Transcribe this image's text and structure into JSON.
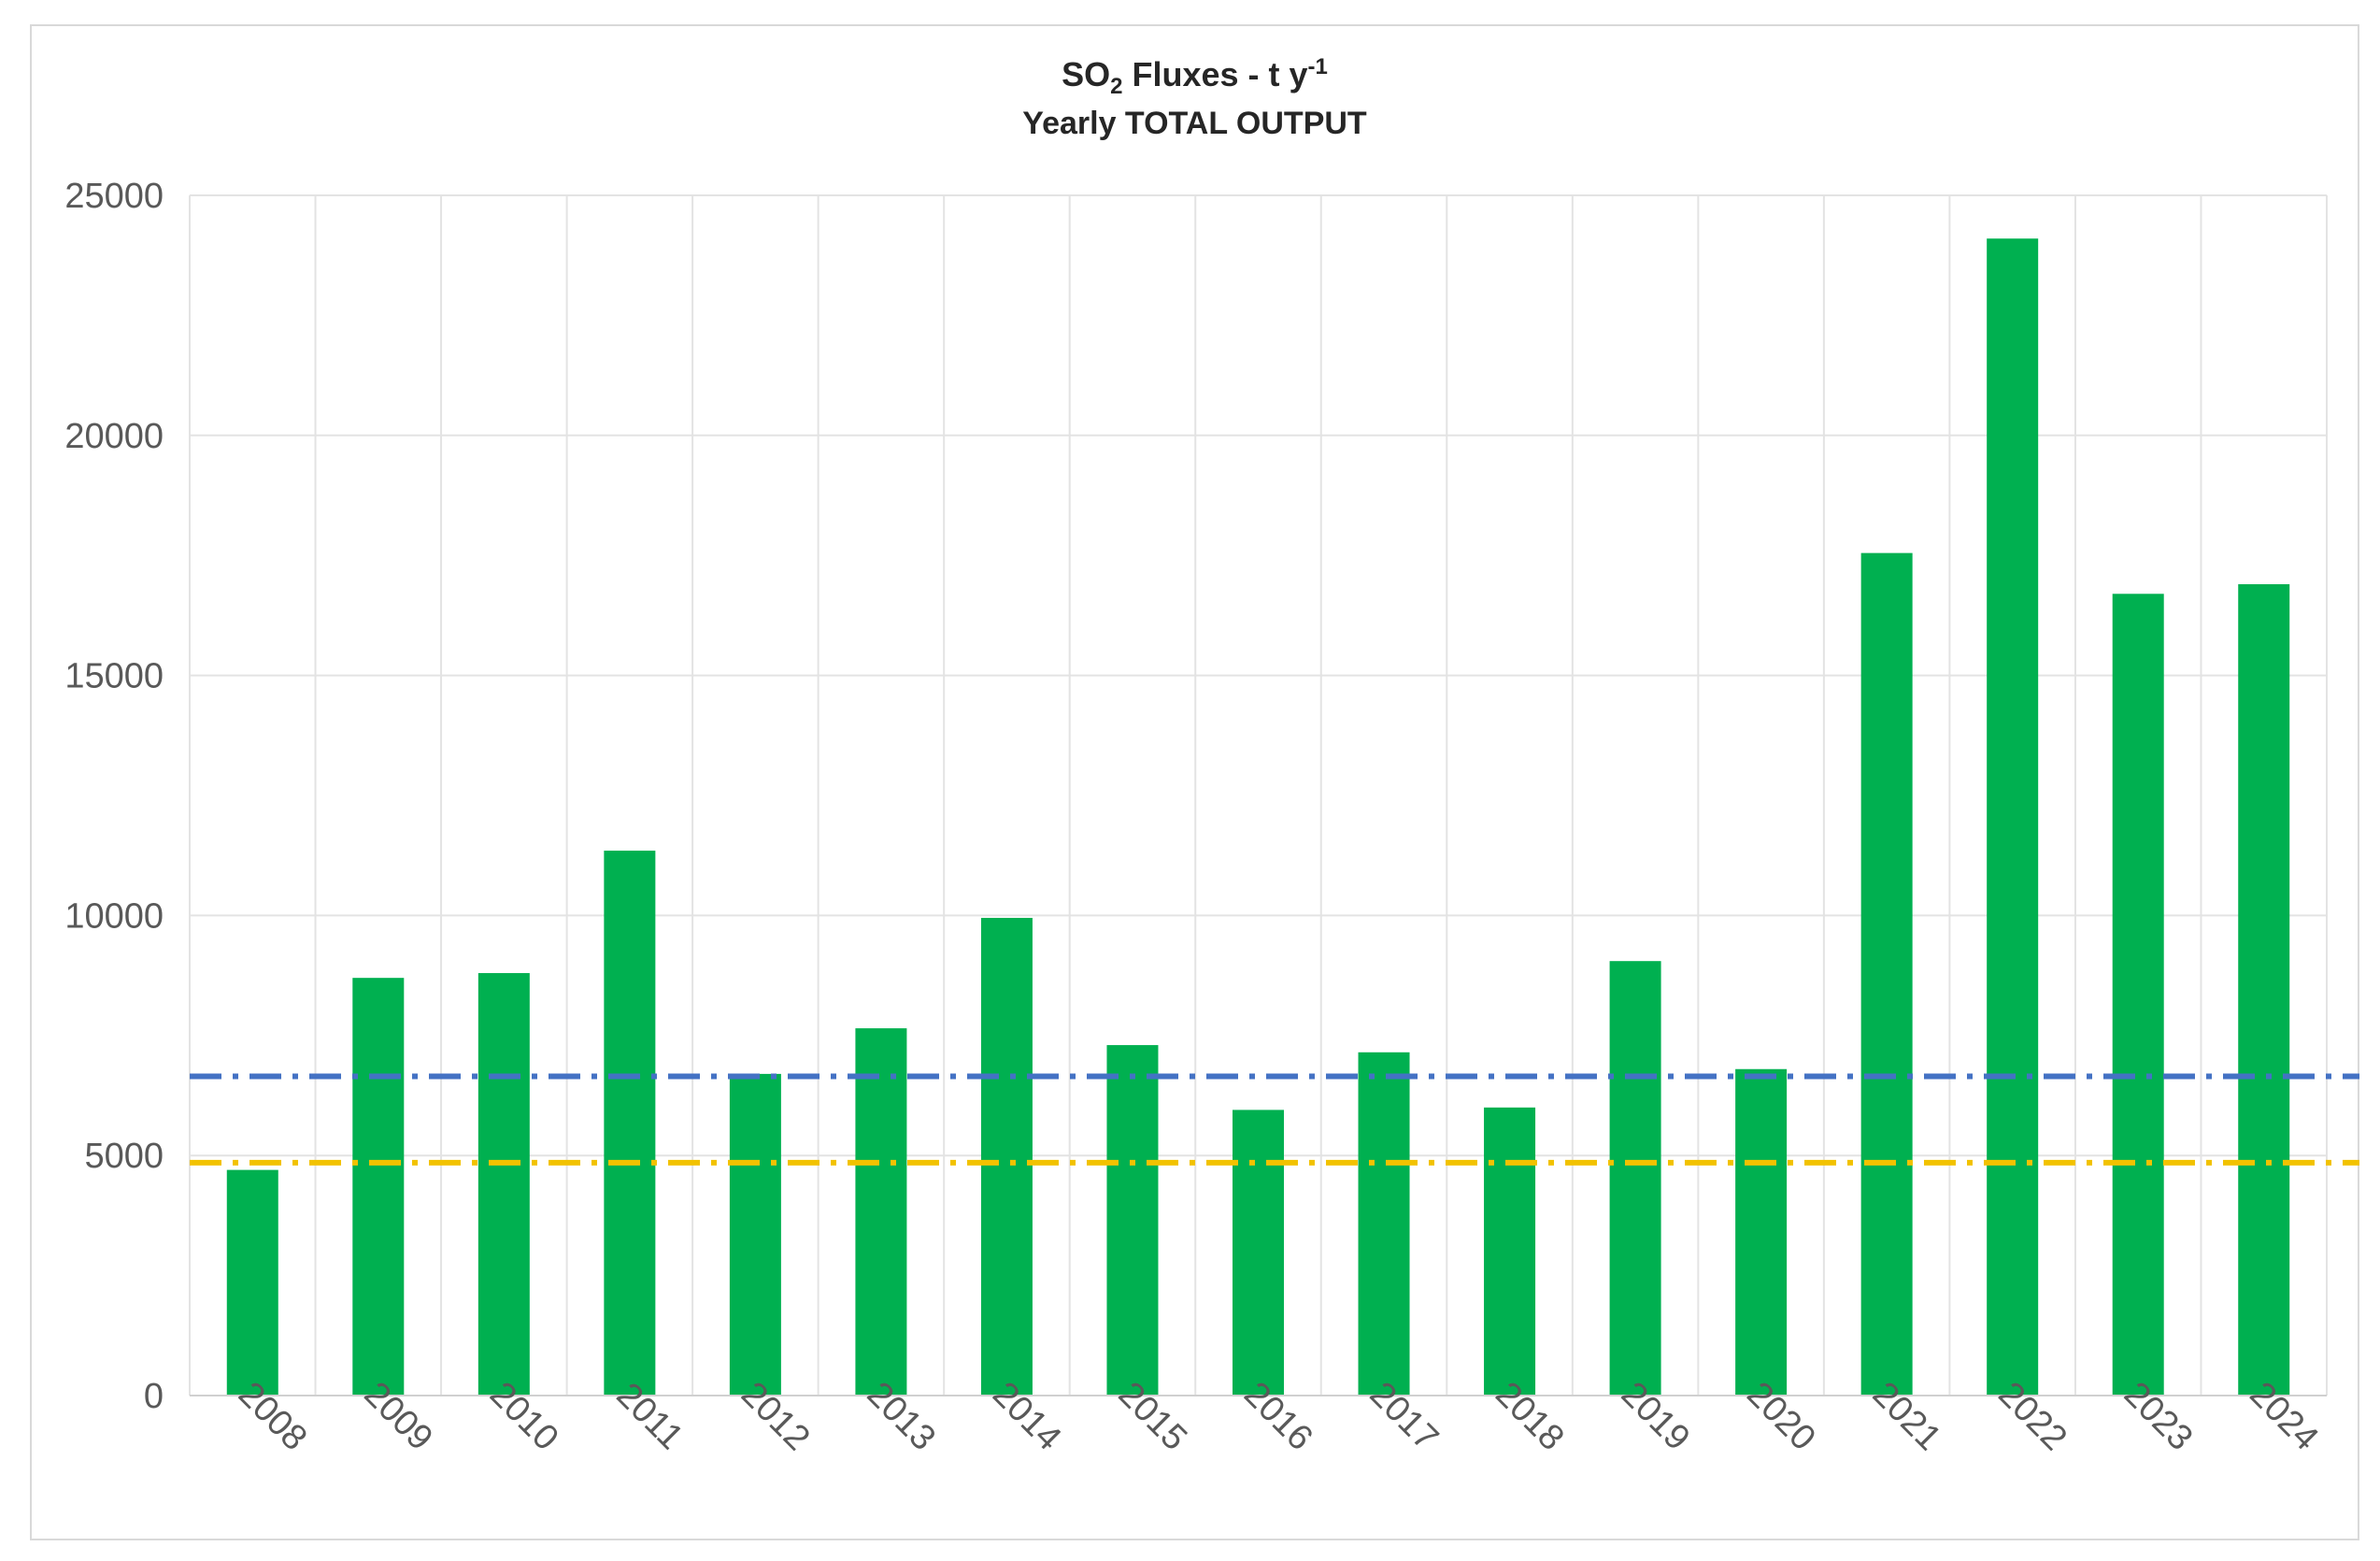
{
  "chart_data": {
    "type": "bar",
    "title": {
      "prefix": "SO",
      "subscript": "2",
      "middle": " Fluxes - t y",
      "superscript": "-1"
    },
    "subtitle": "Yearly TOTAL OUTPUT",
    "xlabel": "",
    "ylabel": "",
    "categories": [
      "2008",
      "2009",
      "2010",
      "2011",
      "2012",
      "2013",
      "2014",
      "2015",
      "2016",
      "2017",
      "2018",
      "2019",
      "2020",
      "2021",
      "2022",
      "2023",
      "2024"
    ],
    "values": [
      4700,
      8700,
      8800,
      11350,
      6700,
      7650,
      9950,
      7300,
      5950,
      7150,
      6000,
      9050,
      6800,
      17550,
      24100,
      16700,
      16900
    ],
    "ylim": [
      0,
      25000
    ],
    "yticks": [
      "0",
      "5000",
      "10000",
      "15000",
      "20000",
      "25000"
    ],
    "grid": true,
    "bar_color": "#00b050",
    "reference_lines": [
      {
        "value": 6650,
        "color": "#4472c4",
        "style": "dash-dot"
      },
      {
        "value": 4850,
        "color": "#f2c200",
        "style": "dash-dot"
      }
    ]
  }
}
